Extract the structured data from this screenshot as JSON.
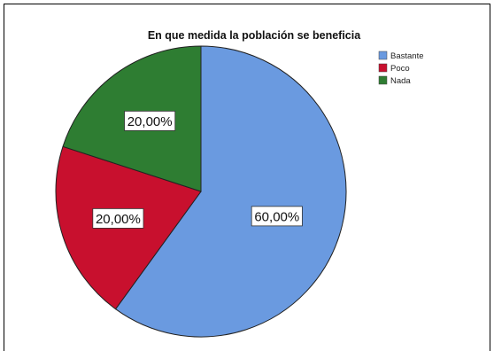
{
  "chart_data": {
    "type": "pie",
    "title": "En que medida la población se beneficia",
    "categories": [
      "Bastante",
      "Poco",
      "Nada"
    ],
    "values": [
      60,
      20,
      20
    ],
    "data_labels": [
      "60,00%",
      "20,00%",
      "20,00%"
    ],
    "colors": [
      "#6a9ae0",
      "#c8102e",
      "#2e7d32"
    ],
    "legend_position": "top-right",
    "start_angle": "12 o'clock",
    "direction": "clockwise"
  }
}
